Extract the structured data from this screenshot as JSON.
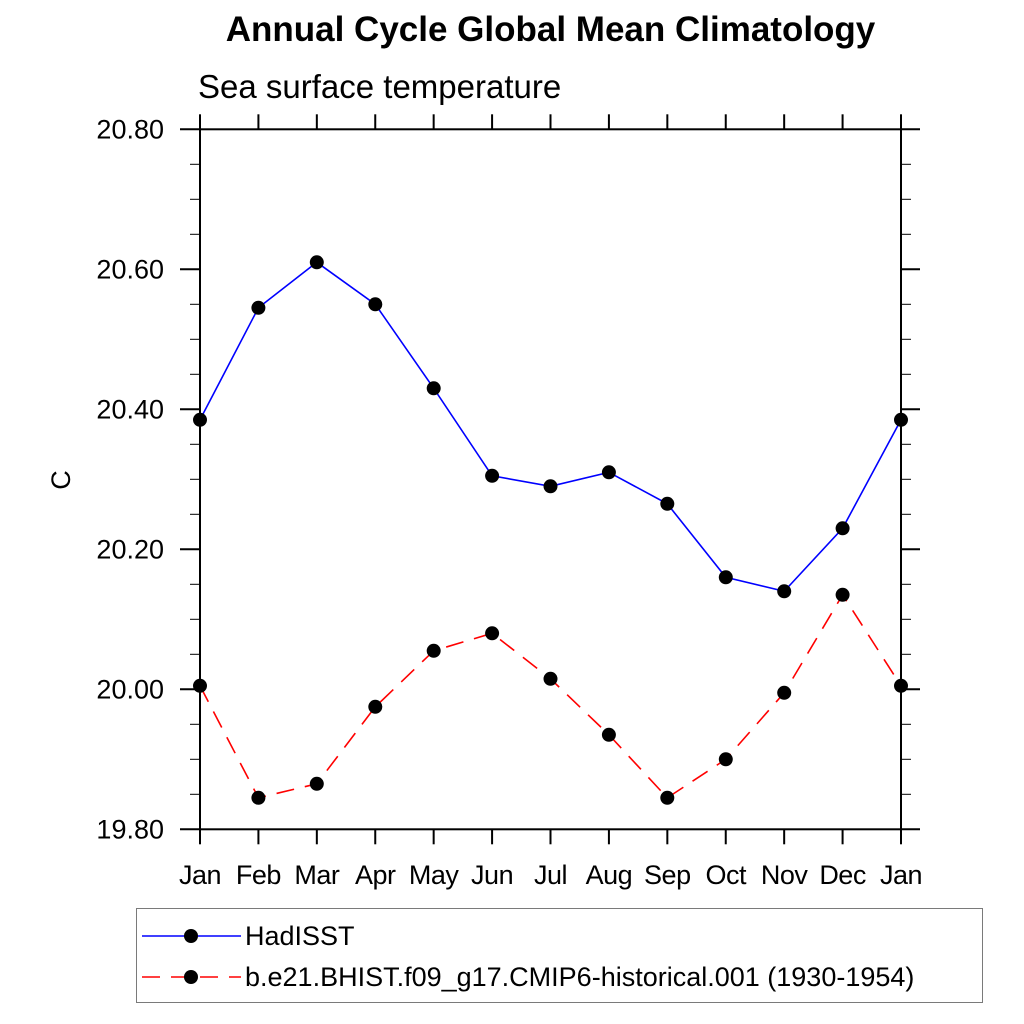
{
  "chart": {
    "title": "Annual Cycle Global Mean Climatology",
    "subtitle": "Sea surface temperature",
    "y_axis_label": "C"
  },
  "legend": {
    "items": [
      {
        "label": "HadISST",
        "line_style": "solid",
        "color": "#0000ff"
      },
      {
        "label": "b.e21.BHIST.f09_g17.CMIP6-historical.001 (1930-1954)",
        "line_style": "dashed",
        "color": "#ff0000"
      }
    ]
  },
  "chart_data": {
    "type": "line",
    "title": "Annual Cycle Global Mean Climatology",
    "subtitle": "Sea surface temperature",
    "xlabel": "",
    "ylabel": "C",
    "ylim": [
      19.8,
      20.8
    ],
    "y_major_tick_labels": [
      "19.80",
      "20.00",
      "20.20",
      "20.40",
      "20.60",
      "20.80"
    ],
    "y_major_ticks": [
      19.8,
      20.0,
      20.2,
      20.4,
      20.6,
      20.8
    ],
    "y_minor_step": 0.05,
    "grid": false,
    "legend_position": "bottom-left",
    "marker_color": "#000000",
    "categories": [
      "Jan",
      "Feb",
      "Mar",
      "Apr",
      "May",
      "Jun",
      "Jul",
      "Aug",
      "Sep",
      "Oct",
      "Nov",
      "Dec",
      "Jan"
    ],
    "series": [
      {
        "name": "HadISST",
        "color": "#0000ff",
        "style": "solid",
        "marker": "circle",
        "values": [
          20.385,
          20.545,
          20.61,
          20.55,
          20.43,
          20.305,
          20.29,
          20.31,
          20.265,
          20.16,
          20.14,
          20.23,
          20.385
        ]
      },
      {
        "name": "b.e21.BHIST.f09_g17.CMIP6-historical.001 (1930-1954)",
        "color": "#ff0000",
        "style": "dashed",
        "marker": "circle",
        "values": [
          20.005,
          19.845,
          19.865,
          19.975,
          20.055,
          20.08,
          20.015,
          19.935,
          19.845,
          19.9,
          19.995,
          20.135,
          20.005
        ]
      }
    ]
  }
}
